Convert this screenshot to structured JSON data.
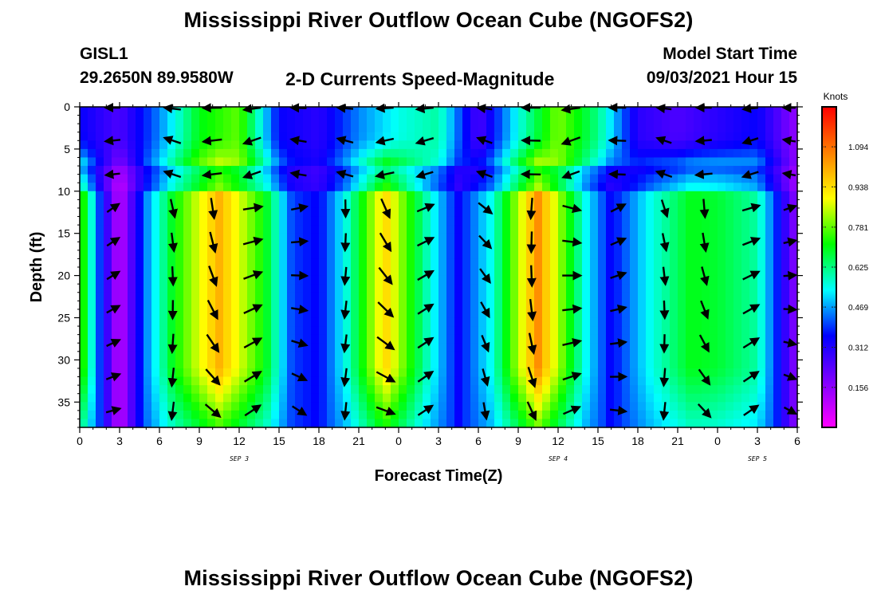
{
  "page": {
    "title_top": "Mississippi River Outflow Ocean Cube (NGOFS2)",
    "title_bottom": "Mississippi River Outflow Ocean Cube (NGOFS2)",
    "station": "GISL1",
    "coords": "29.2650N  89.9580W",
    "subtitle": "2-D Currents Speed-Magnitude",
    "model_label": "Model Start Time",
    "model_time": "09/03/2021 Hour 15"
  },
  "chart_data": {
    "type": "heatmap",
    "title": "2-D Currents Speed-Magnitude",
    "xlabel": "Forecast Time(Z)",
    "ylabel": "Depth (ft)",
    "x_ticks": [
      "0",
      "3",
      "6",
      "9",
      "12",
      "15",
      "18",
      "21",
      "0",
      "3",
      "6",
      "9",
      "12",
      "15",
      "18",
      "21",
      "0",
      "3",
      "6"
    ],
    "x_range_hours": [
      0,
      54
    ],
    "day_labels": [
      {
        "text": "SEP 3",
        "hour": 12
      },
      {
        "text": "SEP 4",
        "hour": 36
      },
      {
        "text": "SEP 5",
        "hour": 51
      }
    ],
    "y_ticks": [
      0,
      5,
      10,
      15,
      20,
      25,
      30,
      35
    ],
    "ylim": [
      0,
      38
    ],
    "y_inverted": true,
    "colorbar": {
      "unit": "Knots",
      "ticks": [
        "1.094",
        "0.938",
        "0.781",
        "0.625",
        "0.469",
        "0.312",
        "0.156"
      ],
      "tick_values": [
        1.094,
        0.938,
        0.781,
        0.625,
        0.469,
        0.312,
        0.156
      ],
      "range": [
        0.0,
        1.25
      ],
      "colors": [
        "#ff00ff",
        "#7f00ff",
        "#0000ff",
        "#00ffff",
        "#00ff00",
        "#ffff00",
        "#ff8000",
        "#ff0000"
      ]
    },
    "surface_speed_by_hour": [
      {
        "hour": 0,
        "speed": 0.35
      },
      {
        "hour": 3,
        "speed": 0.25
      },
      {
        "hour": 6,
        "speed": 0.45
      },
      {
        "hour": 9,
        "speed": 0.7
      },
      {
        "hour": 12,
        "speed": 0.78
      },
      {
        "hour": 15,
        "speed": 0.35
      },
      {
        "hour": 18,
        "speed": 0.3
      },
      {
        "hour": 21,
        "speed": 0.45
      },
      {
        "hour": 24,
        "speed": 0.55
      },
      {
        "hour": 27,
        "speed": 0.6
      },
      {
        "hour": 30,
        "speed": 0.25
      },
      {
        "hour": 33,
        "speed": 0.55
      },
      {
        "hour": 36,
        "speed": 0.8
      },
      {
        "hour": 39,
        "speed": 0.62
      },
      {
        "hour": 42,
        "speed": 0.3
      },
      {
        "hour": 45,
        "speed": 0.25
      },
      {
        "hour": 48,
        "speed": 0.3
      },
      {
        "hour": 51,
        "speed": 0.35
      },
      {
        "hour": 54,
        "speed": 0.15
      }
    ],
    "deep_speed_by_hour": [
      {
        "hour": 0,
        "speed": 0.8
      },
      {
        "hour": 1.5,
        "speed": 0.4
      },
      {
        "hour": 3,
        "speed": 0.08
      },
      {
        "hour": 5,
        "speed": 0.45
      },
      {
        "hour": 7,
        "speed": 0.7
      },
      {
        "hour": 10.5,
        "speed": 1.0
      },
      {
        "hour": 14,
        "speed": 0.7
      },
      {
        "hour": 16,
        "speed": 0.4
      },
      {
        "hour": 18,
        "speed": 0.35
      },
      {
        "hour": 20,
        "speed": 0.55
      },
      {
        "hour": 23,
        "speed": 0.95
      },
      {
        "hour": 26,
        "speed": 0.6
      },
      {
        "hour": 28.5,
        "speed": 0.35
      },
      {
        "hour": 31,
        "speed": 0.55
      },
      {
        "hour": 34.5,
        "speed": 1.05
      },
      {
        "hour": 38,
        "speed": 0.55
      },
      {
        "hour": 40,
        "speed": 0.35
      },
      {
        "hour": 43,
        "speed": 0.55
      },
      {
        "hour": 46,
        "speed": 0.7
      },
      {
        "hour": 48,
        "speed": 0.68
      },
      {
        "hour": 51,
        "speed": 0.6
      },
      {
        "hour": 53,
        "speed": 0.3
      },
      {
        "hour": 54,
        "speed": 0.15
      }
    ],
    "arrow_hours": [
      2.5,
      7,
      10,
      13,
      16.5,
      20,
      23,
      26,
      30.5,
      34,
      37,
      40.5,
      44,
      47,
      50.5,
      53.5
    ],
    "arrow_depths": [
      0,
      4,
      8,
      12,
      16,
      20,
      24,
      28,
      32,
      36
    ]
  }
}
